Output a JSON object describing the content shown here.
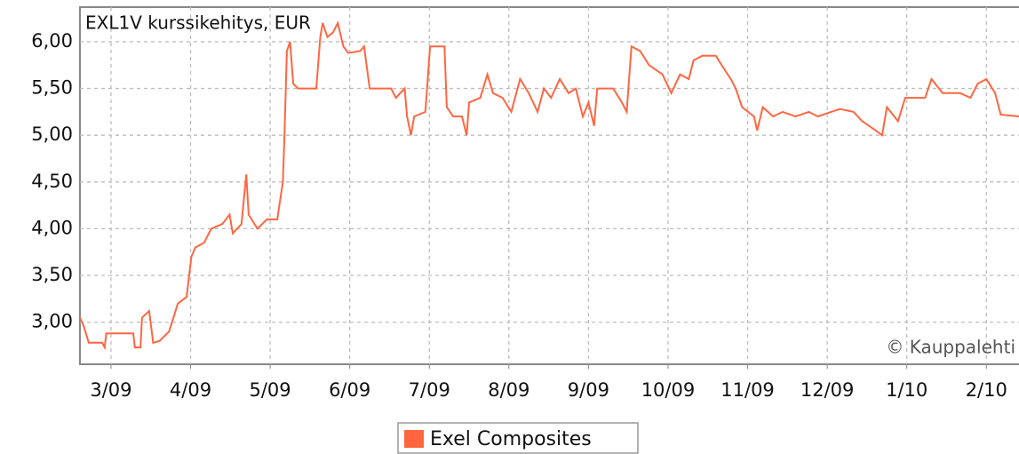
{
  "chart_data": {
    "type": "line",
    "title": "EXL1V kurssikehitys, EUR",
    "annotations": [
      "© Kauppalehti"
    ],
    "x": [
      2.61,
      2.66,
      2.72,
      2.89,
      2.92,
      2.94,
      3.28,
      3.3,
      3.37,
      3.39,
      3.48,
      3.53,
      3.61,
      3.73,
      3.84,
      3.95,
      4.01,
      4.06,
      4.17,
      4.26,
      4.4,
      4.49,
      4.53,
      4.64,
      4.7,
      4.73,
      4.84,
      4.96,
      5.09,
      5.16,
      5.18,
      5.21,
      5.25,
      5.29,
      5.35,
      5.58,
      5.63,
      5.66,
      5.72,
      5.79,
      5.85,
      5.92,
      5.98,
      6.13,
      6.18,
      6.25,
      6.52,
      6.58,
      6.69,
      6.72,
      6.77,
      6.81,
      6.95,
      7.01,
      7.19,
      7.22,
      7.3,
      7.41,
      7.47,
      7.5,
      7.64,
      7.73,
      7.8,
      7.92,
      8.03,
      8.14,
      8.25,
      8.36,
      8.44,
      8.53,
      8.64,
      8.75,
      8.84,
      8.93,
      9.0,
      9.07,
      9.11,
      9.31,
      9.42,
      9.48,
      9.54,
      9.65,
      9.76,
      9.93,
      10.04,
      10.15,
      10.26,
      10.32,
      10.43,
      10.6,
      10.71,
      10.79,
      10.85,
      10.93,
      11.08,
      11.12,
      11.19,
      11.32,
      11.44,
      11.6,
      11.77,
      11.88,
      12.05,
      12.16,
      12.33,
      12.44,
      12.61,
      12.69,
      12.75,
      12.89,
      12.98,
      13.23,
      13.31,
      13.45,
      13.67,
      13.8,
      13.89,
      14.0,
      14.11,
      14.18,
      14.41
    ],
    "series": [
      {
        "name": "Exel Composites",
        "color": "#ff6640",
        "values": [
          3.05,
          2.95,
          2.78,
          2.78,
          2.73,
          2.88,
          2.88,
          2.73,
          2.73,
          3.05,
          3.12,
          2.78,
          2.8,
          2.9,
          3.2,
          3.27,
          3.7,
          3.8,
          3.85,
          4.0,
          4.05,
          4.15,
          3.95,
          4.05,
          4.58,
          4.15,
          4.0,
          4.1,
          4.1,
          4.5,
          5.0,
          5.9,
          6.0,
          5.55,
          5.5,
          5.5,
          6.05,
          6.2,
          6.05,
          6.1,
          6.2,
          5.95,
          5.88,
          5.9,
          5.95,
          5.5,
          5.5,
          5.4,
          5.5,
          5.2,
          5.0,
          5.2,
          5.25,
          5.95,
          5.95,
          5.3,
          5.2,
          5.2,
          5.0,
          5.35,
          5.4,
          5.65,
          5.45,
          5.4,
          5.25,
          5.6,
          5.45,
          5.25,
          5.5,
          5.4,
          5.6,
          5.45,
          5.5,
          5.2,
          5.35,
          5.1,
          5.5,
          5.5,
          5.35,
          5.25,
          5.95,
          5.9,
          5.75,
          5.65,
          5.45,
          5.65,
          5.6,
          5.8,
          5.85,
          5.85,
          5.7,
          5.6,
          5.5,
          5.3,
          5.2,
          5.05,
          5.3,
          5.2,
          5.25,
          5.2,
          5.25,
          5.2,
          5.25,
          5.28,
          5.25,
          5.15,
          5.05,
          5.0,
          5.3,
          5.15,
          5.4,
          5.4,
          5.6,
          5.45,
          5.45,
          5.4,
          5.55,
          5.6,
          5.45,
          5.22,
          5.2
        ]
      }
    ],
    "xlim": [
      2.61,
      14.41
    ],
    "xticks": [
      {
        "value": 3,
        "label": "3/09"
      },
      {
        "value": 4,
        "label": "4/09"
      },
      {
        "value": 5,
        "label": "5/09"
      },
      {
        "value": 6,
        "label": "6/09"
      },
      {
        "value": 7,
        "label": "7/09"
      },
      {
        "value": 8,
        "label": "8/09"
      },
      {
        "value": 9,
        "label": "9/09"
      },
      {
        "value": 10,
        "label": "10/09"
      },
      {
        "value": 11,
        "label": "11/09"
      },
      {
        "value": 12,
        "label": "12/09"
      },
      {
        "value": 13,
        "label": "1/10"
      },
      {
        "value": 14,
        "label": "2/10"
      }
    ],
    "ylim": [
      2.55,
      6.37
    ],
    "yticks": [
      {
        "value": 3,
        "label": "3,00"
      },
      {
        "value": 3.5,
        "label": "3,50"
      },
      {
        "value": 4,
        "label": "4,00"
      },
      {
        "value": 4.5,
        "label": "4,50"
      },
      {
        "value": 5,
        "label": "5,00"
      },
      {
        "value": 5.5,
        "label": "5,50"
      },
      {
        "value": 6,
        "label": "6,00"
      }
    ],
    "grid": true,
    "legend": "bottom"
  }
}
